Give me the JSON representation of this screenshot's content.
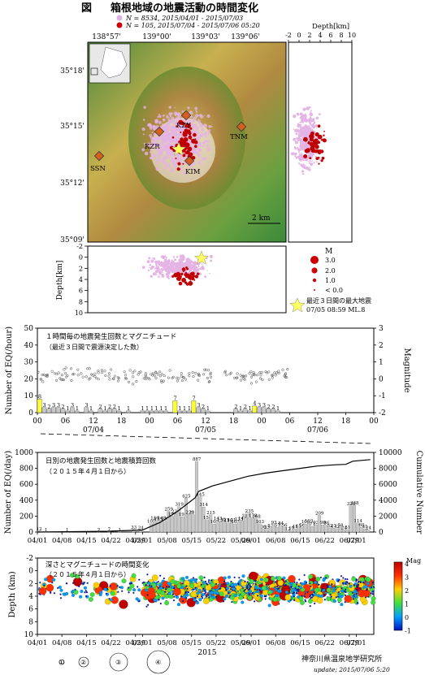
{
  "header": {
    "fig_label": "図",
    "title": "箱根地域の地震活動の時間変化",
    "legend1_text": "N = 8534,  2015/04/01 - 2015/07/03",
    "legend2_text": "N = 105,   2015/07/04 - 2015/07/06 05:20",
    "legend1_color": "#e0b0e0",
    "legend2_color": "#cc0000"
  },
  "map": {
    "lon_ticks": [
      "138°57'",
      "139°00'",
      "139°03'",
      "139°06'"
    ],
    "lat_ticks": [
      "35°18'",
      "35°15'",
      "35°12'",
      "35°09'"
    ],
    "stations": [
      {
        "code": "KZY"
      },
      {
        "code": "KZR"
      },
      {
        "code": "TNM"
      },
      {
        "code": "SSN"
      },
      {
        "code": "KIM"
      }
    ],
    "scale_label": "2 km"
  },
  "section_ns": {
    "xlabel": "Depth[km]",
    "ticks": [
      "-2",
      "0",
      "2",
      "4",
      "6",
      "8",
      "10"
    ]
  },
  "section_ew": {
    "ylabel": "Depth[km]",
    "ticks": [
      "-2",
      "0",
      "2",
      "4",
      "6",
      "8",
      "10"
    ]
  },
  "mag_legend": {
    "title": "M",
    "entries": [
      "3.0",
      "2.0",
      "1.0",
      "< 0.0"
    ],
    "star_line1": "最近３日間の最大地震",
    "star_line2": "07/05 08:59 ML.8"
  },
  "panel_hourly": {
    "title1": "１時間毎の地震発生回数とマグニチュード",
    "title2": "（最近３日間で震源決定した数）",
    "ylabel_left": "Number of EQ(/hour)",
    "ylabel_right": "Magnitude",
    "chart_data": {
      "type": "bar",
      "yticks": [
        0,
        10,
        20,
        30,
        40,
        50
      ],
      "ylim": [
        0,
        50
      ],
      "y2ticks": [
        -2,
        -1,
        0,
        1,
        2,
        3
      ],
      "y2lim": [
        -2,
        3
      ],
      "xticks": [
        "00",
        "06",
        "12",
        "18",
        "00",
        "06",
        "12",
        "18",
        "00",
        "06",
        "12",
        "18",
        "00"
      ],
      "date_labels": [
        "07/04",
        "07/05",
        "07/06"
      ],
      "bars": [
        {
          "hour": 0,
          "value": 8,
          "highlight": true
        },
        {
          "hour": 1,
          "value": 3
        },
        {
          "hour": 2,
          "value": 2
        },
        {
          "hour": 3,
          "value": 3
        },
        {
          "hour": 4,
          "value": 3
        },
        {
          "hour": 5,
          "value": 2
        },
        {
          "hour": 6,
          "value": 1
        },
        {
          "hour": 7,
          "value": 3
        },
        {
          "hour": 8,
          "value": 1
        },
        {
          "hour": 10,
          "value": 3
        },
        {
          "hour": 11,
          "value": 1
        },
        {
          "hour": 13,
          "value": 2
        },
        {
          "hour": 14,
          "value": 1
        },
        {
          "hour": 15,
          "value": 2
        },
        {
          "hour": 16,
          "value": 2
        },
        {
          "hour": 17,
          "value": 1
        },
        {
          "hour": 19,
          "value": 1
        },
        {
          "hour": 22,
          "value": 1
        },
        {
          "hour": 23,
          "value": 1
        },
        {
          "hour": 24,
          "value": 1
        },
        {
          "hour": 25,
          "value": 1
        },
        {
          "hour": 26,
          "value": 1
        },
        {
          "hour": 27,
          "value": 1
        },
        {
          "hour": 29,
          "value": 7,
          "highlight": true
        },
        {
          "hour": 30,
          "value": 1
        },
        {
          "hour": 31,
          "value": 1
        },
        {
          "hour": 32,
          "value": 1
        },
        {
          "hour": 33,
          "value": 7,
          "highlight": true
        },
        {
          "hour": 34,
          "value": 3
        },
        {
          "hour": 35,
          "value": 2
        },
        {
          "hour": 36,
          "value": 1
        },
        {
          "hour": 42,
          "value": 2
        },
        {
          "hour": 43,
          "value": 1
        },
        {
          "hour": 44,
          "value": 2
        },
        {
          "hour": 45,
          "value": 1
        },
        {
          "hour": 46,
          "value": 4,
          "highlight": true
        },
        {
          "hour": 47,
          "value": 3
        },
        {
          "hour": 48,
          "value": 3
        },
        {
          "hour": 49,
          "value": 2
        },
        {
          "hour": 50,
          "value": 2
        },
        {
          "hour": 51,
          "value": 1
        }
      ]
    }
  },
  "panel_daily": {
    "title1": "日別の地震発生回数と地震積算回数",
    "title2": "（２０１５年４月１日から）",
    "ylabel_left": "Number of EQ(/day)",
    "ylabel_right": "Cumulative Number",
    "chart_data": {
      "type": "bar",
      "yticks": [
        0,
        200,
        400,
        600,
        800,
        1000
      ],
      "ylim": [
        0,
        1000
      ],
      "y2ticks": [
        0,
        2000,
        4000,
        6000,
        8000,
        10000
      ],
      "y2lim": [
        0,
        10000
      ],
      "xticks": [
        "04/01",
        "04/08",
        "04/15",
        "04/22",
        "04/29",
        "05/01",
        "05/08",
        "05/15",
        "05/22",
        "05/29",
        "06/01",
        "06/08",
        "06/15",
        "06/22",
        "06/29",
        "07/01"
      ],
      "bars": [
        {
          "day": 0,
          "value": 12
        },
        {
          "day": 2,
          "value": 1
        },
        {
          "day": 8,
          "value": 1
        },
        {
          "day": 17,
          "value": 2
        },
        {
          "day": 20,
          "value": 7
        },
        {
          "day": 23,
          "value": 1
        },
        {
          "day": 27,
          "value": 33
        },
        {
          "day": 29,
          "value": 24
        },
        {
          "day": 32,
          "value": 105
        },
        {
          "day": 33,
          "value": 146
        },
        {
          "day": 34,
          "value": 135
        },
        {
          "day": 35,
          "value": 148
        },
        {
          "day": 36,
          "value": 136
        },
        {
          "day": 37,
          "value": 259
        },
        {
          "day": 38,
          "value": 199
        },
        {
          "day": 39,
          "value": 231
        },
        {
          "day": 40,
          "value": 319
        },
        {
          "day": 41,
          "value": 193
        },
        {
          "day": 42,
          "value": 425
        },
        {
          "day": 43,
          "value": 220
        },
        {
          "day": 44,
          "value": 218
        },
        {
          "day": 45,
          "value": 887
        },
        {
          "day": 46,
          "value": 445
        },
        {
          "day": 47,
          "value": 314
        },
        {
          "day": 48,
          "value": 154
        },
        {
          "day": 49,
          "value": 215
        },
        {
          "day": 50,
          "value": 100
        },
        {
          "day": 51,
          "value": 143
        },
        {
          "day": 52,
          "value": 130
        },
        {
          "day": 53,
          "value": 123
        },
        {
          "day": 54,
          "value": 116
        },
        {
          "day": 55,
          "value": 121
        },
        {
          "day": 56,
          "value": 102
        },
        {
          "day": 57,
          "value": 133
        },
        {
          "day": 58,
          "value": 143
        },
        {
          "day": 59,
          "value": 181
        },
        {
          "day": 60,
          "value": 235
        },
        {
          "day": 61,
          "value": 178
        },
        {
          "day": 62,
          "value": 168
        },
        {
          "day": 63,
          "value": 103
        },
        {
          "day": 64,
          "value": 36
        },
        {
          "day": 65,
          "value": 33
        },
        {
          "day": 66,
          "value": 53
        },
        {
          "day": 67,
          "value": 93
        },
        {
          "day": 68,
          "value": 57
        },
        {
          "day": 69,
          "value": 84
        },
        {
          "day": 70,
          "value": 56
        },
        {
          "day": 71,
          "value": 12
        },
        {
          "day": 72,
          "value": 19
        },
        {
          "day": 73,
          "value": 41
        },
        {
          "day": 74,
          "value": 45
        },
        {
          "day": 75,
          "value": 56
        },
        {
          "day": 76,
          "value": 100
        },
        {
          "day": 77,
          "value": 110
        },
        {
          "day": 78,
          "value": 71
        },
        {
          "day": 79,
          "value": 93
        },
        {
          "day": 80,
          "value": 209
        },
        {
          "day": 81,
          "value": 90
        },
        {
          "day": 82,
          "value": 86
        },
        {
          "day": 83,
          "value": 52
        },
        {
          "day": 84,
          "value": 47
        },
        {
          "day": 85,
          "value": 42
        },
        {
          "day": 86,
          "value": 58
        },
        {
          "day": 87,
          "value": 24
        },
        {
          "day": 88,
          "value": 31
        },
        {
          "day": 89,
          "value": 328
        },
        {
          "day": 90,
          "value": 338
        },
        {
          "day": 91,
          "value": 114
        },
        {
          "day": 92,
          "value": 60
        },
        {
          "day": 93,
          "value": 41
        },
        {
          "day": 94,
          "value": 24
        }
      ],
      "cumulative": [
        [
          0,
          0
        ],
        [
          20,
          100
        ],
        [
          30,
          260
        ],
        [
          35,
          1200
        ],
        [
          40,
          2600
        ],
        [
          45,
          4300
        ],
        [
          46,
          5100
        ],
        [
          50,
          5800
        ],
        [
          55,
          6400
        ],
        [
          60,
          7000
        ],
        [
          65,
          7400
        ],
        [
          70,
          7700
        ],
        [
          75,
          8000
        ],
        [
          80,
          8300
        ],
        [
          85,
          8450
        ],
        [
          88,
          8500
        ],
        [
          90,
          8900
        ],
        [
          95,
          9100
        ]
      ]
    }
  },
  "panel_depth": {
    "title1": "深さとマグニチュードの時間変化",
    "title2": "（２０１５年４月１日から）",
    "ylabel": "Depth (km)",
    "colorbar_title": "Mag",
    "colorbar_ticks": [
      "4",
      "3",
      "2",
      "1",
      "0",
      "-1"
    ],
    "chart_data": {
      "type": "scatter",
      "yticks": [
        -2,
        0,
        2,
        4,
        6,
        8,
        10
      ],
      "ylim": [
        -2,
        10
      ],
      "xticks": [
        "04/01",
        "04/08",
        "04/15",
        "04/22",
        "04/29",
        "05/01",
        "05/08",
        "05/15",
        "05/22",
        "05/29",
        "06/01",
        "06/08",
        "06/15",
        "06/22",
        "06/29",
        "07/01"
      ],
      "year_label": "2015"
    }
  },
  "size_legend": [
    "①",
    "②",
    "③",
    "④"
  ],
  "footer": {
    "org": "神奈川県温泉地学研究所",
    "update": "update; 2015/07/06  5:20"
  }
}
